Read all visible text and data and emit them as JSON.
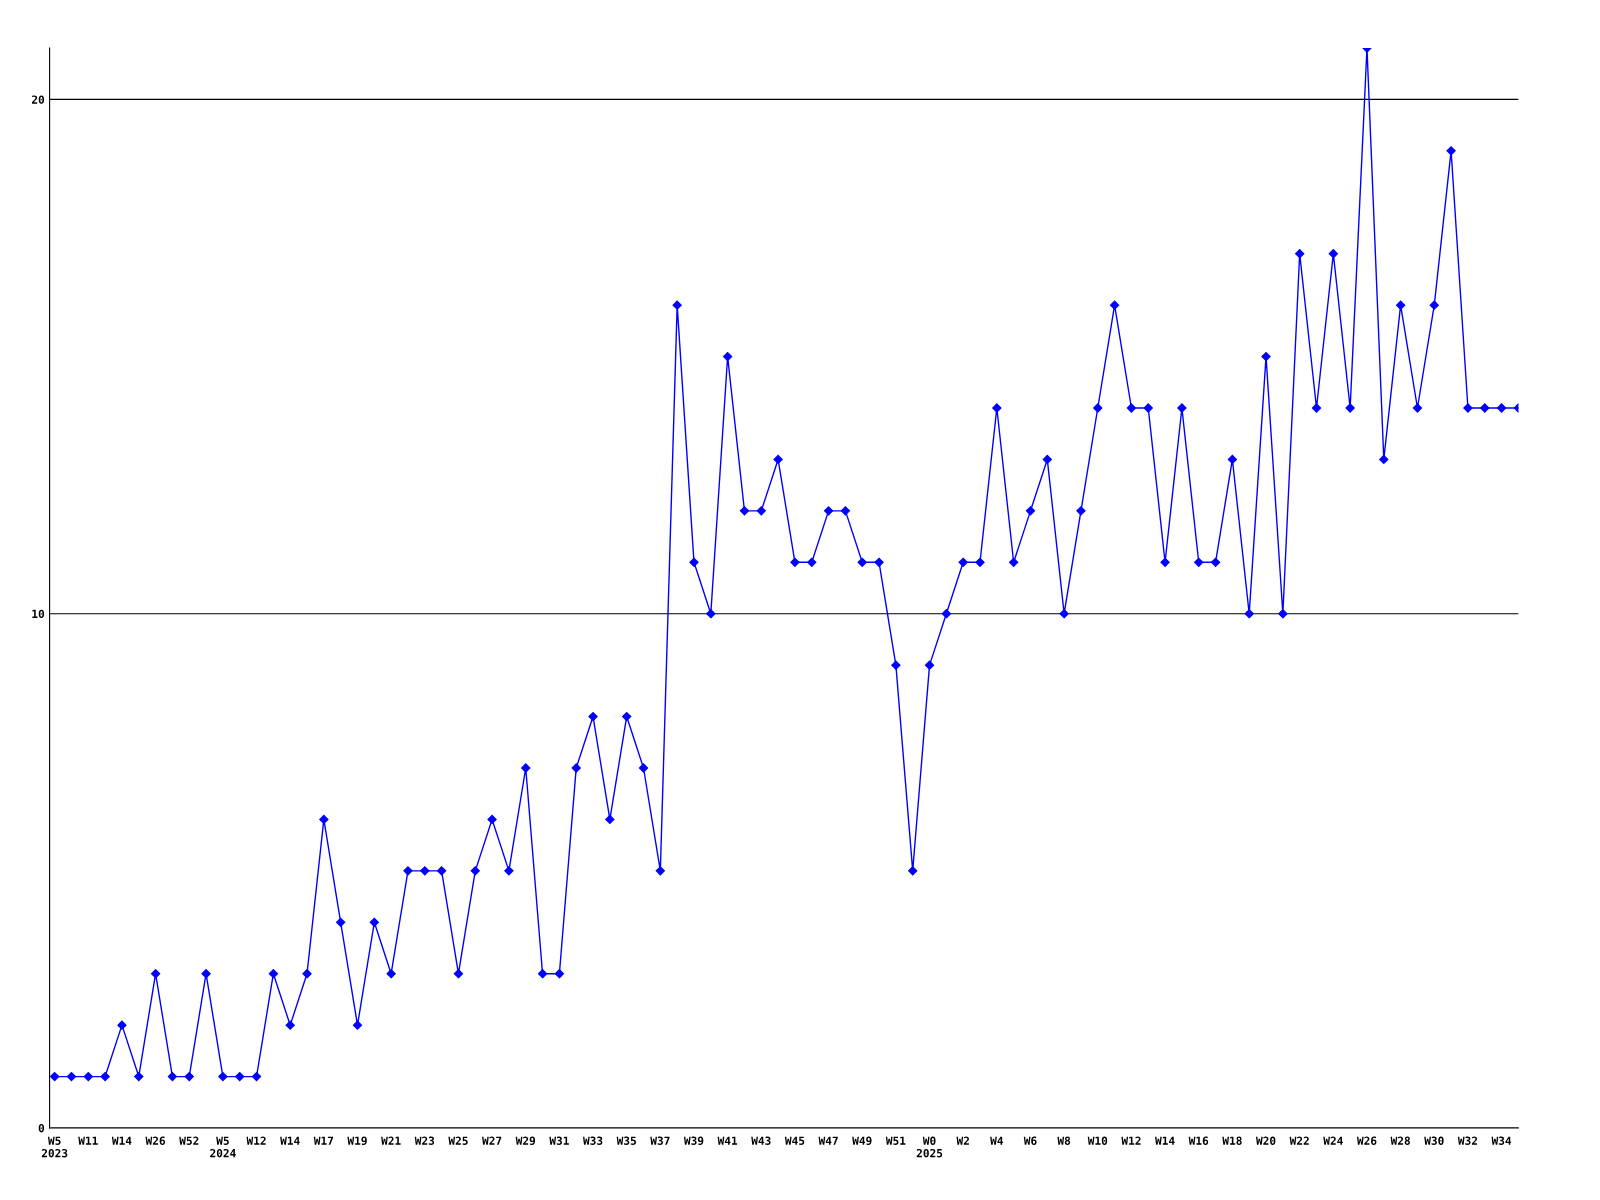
{
  "chart_data": {
    "type": "line",
    "categories": [
      "W5\n2023",
      null,
      "W11",
      null,
      "W14",
      null,
      "W26",
      null,
      "W52",
      null,
      "W5\n2024",
      null,
      "W12",
      null,
      "W14",
      null,
      "W17",
      null,
      "W19",
      null,
      "W21",
      null,
      "W23",
      null,
      "W25",
      null,
      "W27",
      null,
      "W29",
      null,
      "W31",
      null,
      "W33",
      null,
      "W35",
      null,
      "W37",
      null,
      "W39",
      null,
      "W41",
      null,
      "W43",
      null,
      "W45",
      null,
      "W47",
      null,
      "W49",
      null,
      "W51",
      null,
      "W0\n2025",
      null,
      "W2",
      null,
      "W4",
      null,
      "W6",
      null,
      "W8",
      null,
      "W10",
      null,
      "W12",
      null,
      "W14",
      null,
      "W16",
      null,
      "W18",
      null,
      "W20",
      null,
      "W22",
      null,
      "W24",
      null,
      "W26",
      null,
      "W28",
      null,
      "W30",
      null,
      "W32",
      null,
      "W34",
      null
    ],
    "series": [
      {
        "color": "#0000ff",
        "values": [
          1,
          1,
          1,
          1,
          2,
          1,
          3,
          1,
          1,
          3,
          1,
          1,
          1,
          3,
          2,
          3,
          6,
          4,
          2,
          4,
          3,
          5,
          5,
          5,
          3,
          5,
          6,
          5,
          7,
          3,
          3,
          7,
          8,
          6,
          8,
          7,
          5,
          16,
          11,
          10,
          15,
          12,
          12,
          13,
          11,
          11,
          12,
          12,
          11,
          11,
          9,
          5,
          9,
          10,
          11,
          11,
          14,
          11,
          12,
          13,
          10,
          12,
          14,
          16,
          14,
          14,
          11,
          14,
          11,
          11,
          13,
          10,
          15,
          10,
          17,
          14,
          17,
          14,
          21,
          13,
          16,
          14,
          16,
          19,
          14,
          14,
          14,
          14
        ]
      }
    ],
    "ylim": [
      0,
      21
    ],
    "yticks": [
      0,
      10,
      20
    ],
    "grid": "y",
    "marker": "diamond",
    "line_style": "solid",
    "legend": false
  }
}
